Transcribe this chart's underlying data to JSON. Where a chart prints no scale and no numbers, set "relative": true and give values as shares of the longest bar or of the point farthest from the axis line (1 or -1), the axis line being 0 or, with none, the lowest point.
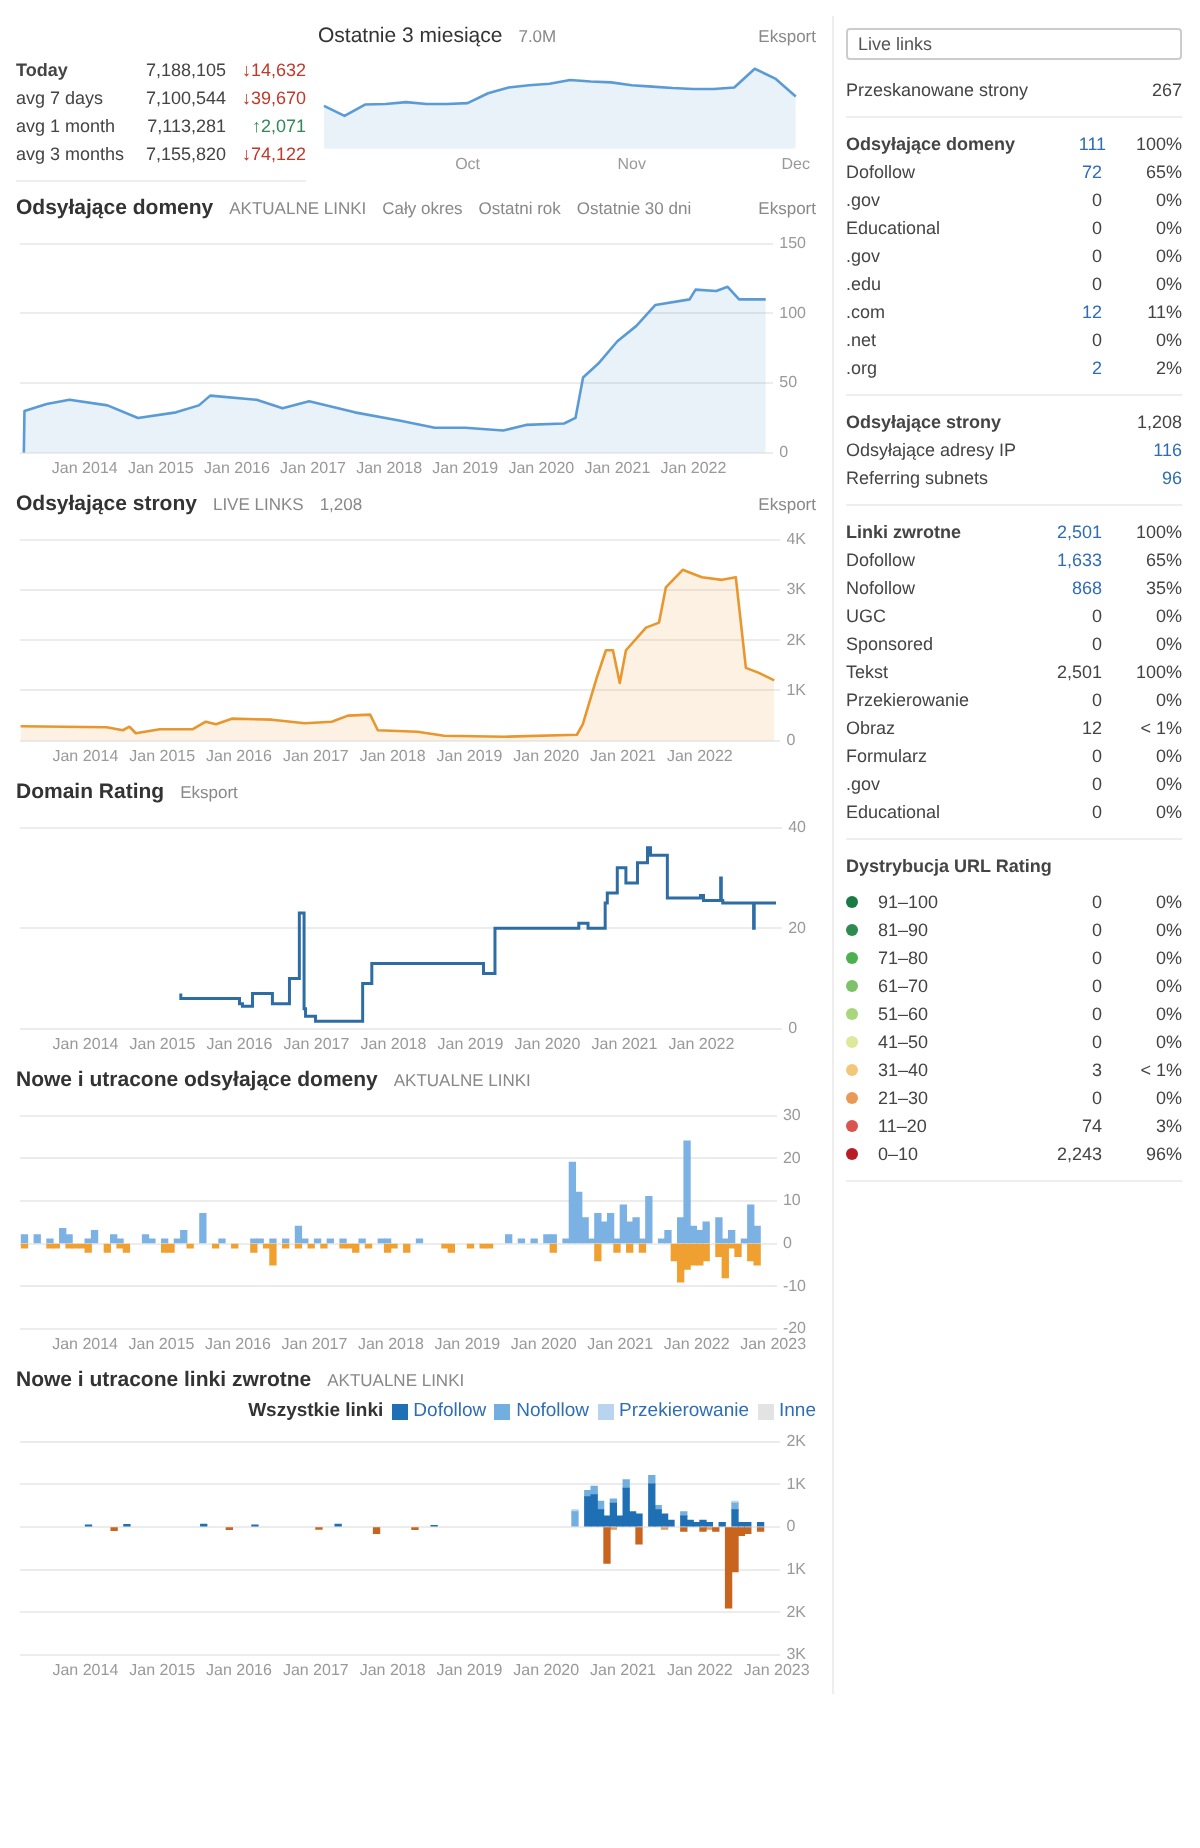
{
  "chart_data": [
    {
      "type": "other",
      "categories": [
        "Today",
        "avg 7 days",
        "avg 1 month",
        "avg 3 months"
      ],
      "series": [
        {
          "color": "#444444",
          "values": [
            7188105,
            7100544,
            7113281,
            7155820
          ],
          "value_labels": [
            "7,188,105",
            "7,100,544",
            "7,113,281",
            "7,155,820"
          ]
        },
        {
          "colors": [
            "#c0392b",
            "#c0392b",
            "#2e8b57",
            "#c0392b"
          ],
          "values": [
            14632,
            39670,
            2071,
            74122
          ],
          "value_labels": [
            "↓14,632",
            "↓39,670",
            "↑2,071",
            "↓74,122"
          ]
        }
      ]
    },
    {
      "type": "area",
      "title": "Ostatnie 3 miesiące",
      "annotations": [
        "7.0M",
        "Eksport"
      ],
      "relative": true,
      "color": "#5b9bd5",
      "categories": [
        null,
        null,
        null,
        null,
        null,
        null,
        null,
        "Oct",
        null,
        null,
        null,
        null,
        null,
        null,
        null,
        "Nov",
        null,
        null,
        null,
        null,
        null,
        null,
        null,
        "Dec"
      ],
      "values": [
        0.21,
        0,
        0.24,
        0.25,
        0.29,
        0.25,
        0.25,
        0.27,
        0.48,
        0.6,
        0.65,
        0.68,
        0.76,
        0.73,
        0.71,
        0.65,
        0.62,
        0.59,
        0.57,
        0.57,
        0.6,
        1,
        0.79,
        0.41
      ]
    },
    {
      "type": "area",
      "title": "Odsyłające domeny",
      "annotations": [
        "AKTUALNE LINKI",
        "Cały okres",
        "Ostatni rok",
        "Ostatnie 30 dni",
        "Eksport"
      ],
      "color": "#5b9bd5",
      "grid": "y",
      "x": [
        "2013-03-13",
        "2013-03-16",
        "2013-07-01",
        "2013-10-19",
        "2014-04-19",
        "2014-09-13",
        "2015-03-13",
        "2015-07-01",
        "2015-08-25",
        "2016-04-04",
        "2016-08-07",
        "2016-12-13",
        "2017-07-19",
        "2018-02-25",
        "2018-08-07",
        "2019-01-01",
        "2019-07-01",
        "2019-10-19",
        "2020-04-19",
        "2020-06-13",
        "2020-07-19",
        "2020-10-01",
        "2021-01-01",
        "2021-04-01",
        "2021-07-01",
        "2021-12-13",
        "2022-01-11",
        "2022-04-19",
        "2022-06-13",
        "2022-08-07",
        "2022-12-13"
      ],
      "values": [
        0,
        30,
        35,
        38,
        34,
        25,
        29,
        34,
        41,
        38,
        32,
        37,
        29,
        23,
        18,
        18,
        16,
        20,
        21,
        25,
        54,
        64,
        80,
        91,
        106,
        110,
        117,
        116,
        119,
        110,
        110
      ],
      "xlim": [
        "2013-02-25",
        "2023-01-19"
      ],
      "xticks": [
        {
          "value": "2014",
          "label": "Jan 2014"
        },
        {
          "value": "2015",
          "label": "Jan 2015"
        },
        {
          "value": "2016",
          "label": "Jan 2016"
        },
        {
          "value": "2017",
          "label": "Jan 2017"
        },
        {
          "value": "2018",
          "label": "Jan 2018"
        },
        {
          "value": "2019",
          "label": "Jan 2019"
        },
        {
          "value": "2020",
          "label": "Jan 2020"
        },
        {
          "value": "2021",
          "label": "Jan 2021"
        },
        {
          "value": "2022",
          "label": "Jan 2022"
        }
      ],
      "ylim": [
        0,
        150
      ],
      "yticks": [
        0,
        50,
        100,
        150
      ]
    },
    {
      "type": "area",
      "title": "Odsyłające strony",
      "annotations": [
        "LIVE LINKS",
        "1,208",
        "Eksport"
      ],
      "color": "#e8962e",
      "grid": "y",
      "x": [
        "2013-02-28",
        "2014-04-11",
        "2014-06-27",
        "2014-07-28",
        "2014-08-28",
        "2014-12-20",
        "2015-05-25",
        "2015-07-26",
        "2015-09-13",
        "2015-11-28",
        "2016-06-05",
        "2016-11-10",
        "2017-03-16",
        "2017-06-02",
        "2017-09-16",
        "2017-10-22",
        "2018-04-28",
        "2018-09-02",
        "2019-06-13",
        "2020-05-25",
        "2020-06-23",
        "2020-08-28",
        "2020-10-11",
        "2020-11-14",
        "2020-12-16",
        "2021-01-15",
        "2021-04-19",
        "2021-06-20",
        "2021-07-22",
        "2021-10-11",
        "2021-11-10",
        "2022-01-11",
        "2022-04-15",
        "2022-06-20",
        "2022-08-07",
        "2022-10-08",
        "2022-12-20"
      ],
      "values": [
        290,
        270,
        210,
        280,
        150,
        230,
        230,
        380,
        330,
        440,
        420,
        350,
        380,
        500,
        520,
        210,
        180,
        100,
        80,
        120,
        330,
        1250,
        1800,
        1800,
        1150,
        1800,
        2250,
        2350,
        3050,
        3400,
        3350,
        3250,
        3200,
        3250,
        1450,
        1350,
        1200
      ],
      "xlim": [
        "2013-02-25",
        "2023-01-19"
      ],
      "xticks": [
        {
          "value": "2014",
          "label": "Jan 2014"
        },
        {
          "value": "2015",
          "label": "Jan 2015"
        },
        {
          "value": "2016",
          "label": "Jan 2016"
        },
        {
          "value": "2017",
          "label": "Jan 2017"
        },
        {
          "value": "2018",
          "label": "Jan 2018"
        },
        {
          "value": "2019",
          "label": "Jan 2019"
        },
        {
          "value": "2020",
          "label": "Jan 2020"
        },
        {
          "value": "2021",
          "label": "Jan 2021"
        },
        {
          "value": "2022",
          "label": "Jan 2022"
        }
      ],
      "ylim": [
        0,
        4000
      ],
      "yticks": [
        0,
        {
          "value": 1000,
          "label": "1K"
        },
        {
          "value": 2000,
          "label": "2K"
        },
        {
          "value": 3000,
          "label": "3K"
        },
        {
          "value": 4000,
          "label": "4K"
        }
      ]
    },
    {
      "type": "step",
      "title": "Domain Rating",
      "annotations": [
        "Eksport"
      ],
      "color": "#2e6da4",
      "grid": "y",
      "x": [
        "2015-03-27",
        "2015-05-07",
        "2016-01-01",
        "2016-01-15",
        "2016-03-02",
        "2016-06-05",
        "2016-08-25",
        "2016-10-11",
        "2016-11-03",
        "2016-11-10",
        "2016-12-27",
        "2017-08-07",
        "2017-09-20",
        "2019-03-02",
        "2019-04-26",
        "2020-05-28",
        "2020-07-11",
        "2020-10-01",
        "2020-10-11",
        "2020-11-28",
        "2021-01-08",
        "2021-03-02",
        "2021-04-19",
        "2021-05-03",
        "2021-07-22",
        "2021-12-27",
        "2022-01-11",
        "2022-04-01",
        "2022-04-04",
        "2022-04-11",
        "2022-07-01",
        "2022-09-05",
        "2022-09-08",
        "2022-09-13",
        "2022-12-20"
      ],
      "values": [
        7,
        6,
        6,
        5,
        4.5,
        7,
        5,
        10,
        23,
        4,
        2.5,
        1.5,
        9,
        13,
        11,
        20,
        21,
        20,
        25,
        27,
        32,
        29,
        33,
        36,
        34.5,
        26,
        26.5,
        25.5,
        30,
        25.5,
        25,
        25,
        20,
        25,
        25
      ],
      "xlim": [
        "2013-02-25",
        "2023-01-19"
      ],
      "xticks": [
        {
          "value": "2014",
          "label": "Jan 2014"
        },
        {
          "value": "2015",
          "label": "Jan 2015"
        },
        {
          "value": "2016",
          "label": "Jan 2016"
        },
        {
          "value": "2017",
          "label": "Jan 2017"
        },
        {
          "value": "2018",
          "label": "Jan 2018"
        },
        {
          "value": "2019",
          "label": "Jan 2019"
        },
        {
          "value": "2020",
          "label": "Jan 2020"
        },
        {
          "value": "2021",
          "label": "Jan 2021"
        },
        {
          "value": "2022",
          "label": "Jan 2022"
        }
      ],
      "ylim": [
        0,
        40
      ],
      "yticks": [
        0,
        20,
        40
      ]
    },
    {
      "type": "bar",
      "title": "Nowe i utracone odsyłające domeny",
      "annotations": [
        "AKTUALNE LINKI"
      ],
      "stacked": true,
      "grid": "y",
      "series": [
        {
          "color": "#7cb1e3",
          "x": [
            "2013-03",
            "2013-05",
            "2013-07",
            "2013-09",
            "2013-10",
            "2014-01",
            "2014-02",
            "2014-05",
            "2014-06",
            "2014-10",
            "2014-11",
            "2015-01",
            "2015-03",
            "2015-04",
            "2015-07",
            "2015-10",
            "2016-03",
            "2016-04",
            "2016-06",
            "2016-08",
            "2016-10",
            "2016-11",
            "2017-01",
            "2017-03",
            "2017-05",
            "2017-08",
            "2017-11",
            "2017-12",
            "2018-05",
            "2019-07",
            "2019-09",
            "2019-11",
            "2020-01",
            "2020-02",
            "2020-04",
            "2020-05",
            "2020-06",
            "2020-07",
            "2020-08",
            "2020-09",
            "2020-10",
            "2020-11",
            "2020-12",
            "2021-01",
            "2021-02",
            "2021-03",
            "2021-04",
            "2021-05",
            "2021-07",
            "2021-08",
            "2021-10",
            "2021-11",
            "2021-12",
            "2022-01",
            "2022-02",
            "2022-04",
            "2022-05",
            "2022-06",
            "2022-08",
            "2022-09",
            "2022-10"
          ],
          "values": [
            2,
            2,
            1,
            3.5,
            2,
            1,
            3,
            2,
            1,
            2,
            1,
            1,
            1,
            3,
            7,
            1,
            1,
            1,
            1,
            1,
            4,
            1,
            1,
            1,
            1,
            1,
            1,
            1,
            1,
            2,
            1,
            1,
            2,
            2,
            1,
            19,
            12,
            6,
            1,
            7,
            5,
            7,
            1,
            9,
            5,
            6,
            1,
            11,
            1,
            3,
            6,
            24,
            4,
            3,
            5,
            6,
            1,
            3,
            1,
            9,
            4
          ]
        },
        {
          "color": "#f0a030",
          "x": [
            "2013-03",
            "2013-07",
            "2013-08",
            "2013-10",
            "2013-11",
            "2013-12",
            "2014-01",
            "2014-04",
            "2014-06",
            "2014-07",
            "2015-01",
            "2015-02",
            "2015-05",
            "2015-09",
            "2015-12",
            "2016-03",
            "2016-05",
            "2016-06",
            "2016-08",
            "2016-10",
            "2016-12",
            "2017-02",
            "2017-05",
            "2017-06",
            "2017-07",
            "2017-09",
            "2017-12",
            "2018-01",
            "2018-03",
            "2018-09",
            "2018-10",
            "2019-01",
            "2019-03",
            "2019-04",
            "2020-02",
            "2020-09",
            "2020-12",
            "2021-02",
            "2021-04",
            "2021-09",
            "2021-10",
            "2021-11",
            "2021-12",
            "2022-01",
            "2022-02",
            "2022-04",
            "2022-05",
            "2022-06",
            "2022-07",
            "2022-09",
            "2022-10"
          ],
          "values": [
            -1,
            -1,
            -1,
            -1,
            -1,
            -1,
            -2,
            -2,
            -1,
            -2,
            -2,
            -2,
            -1,
            -1,
            -1,
            -2,
            -1,
            -5,
            -1,
            -1,
            -1,
            -1,
            -1,
            -1,
            -2,
            -1,
            -2,
            -1,
            -2,
            -1,
            -2,
            -1,
            -1,
            -1,
            -2,
            -4,
            -2,
            -2,
            -2,
            -4,
            -9,
            -6,
            -5,
            -5,
            -4,
            -3,
            -8,
            -1,
            -3,
            -4,
            -5
          ]
        }
      ],
      "xlim": [
        "2013-02-25",
        "2023-01-19"
      ],
      "xticks": [
        {
          "value": "2014",
          "label": "Jan 2014"
        },
        {
          "value": "2015",
          "label": "Jan 2015"
        },
        {
          "value": "2016",
          "label": "Jan 2016"
        },
        {
          "value": "2017",
          "label": "Jan 2017"
        },
        {
          "value": "2018",
          "label": "Jan 2018"
        },
        {
          "value": "2019",
          "label": "Jan 2019"
        },
        {
          "value": "2020",
          "label": "Jan 2020"
        },
        {
          "value": "2021",
          "label": "Jan 2021"
        },
        {
          "value": "2022",
          "label": "Jan 2022"
        },
        {
          "value": "2023",
          "label": "Jan 2023"
        }
      ],
      "ylim": [
        -20,
        30
      ],
      "yticks": [
        -20,
        -10,
        0,
        10,
        20,
        30
      ]
    },
    {
      "type": "bar",
      "title": "Nowe i utracone linki zwrotne",
      "annotations": [
        "AKTUALNE LINKI"
      ],
      "stacked": true,
      "grid": "y",
      "legend": "top right",
      "legend_title": "Wszystkie linki",
      "series": [
        {
          "name": "Dofollow",
          "color": "#1f6fb5",
          "values": [
            40,
            null,
            50,
            60,
            null,
            40,
            null,
            60,
            null,
            null,
            30,
            null,
            700,
            750,
            400,
            250,
            550,
            250,
            900,
            350,
            300,
            1000,
            400,
            300,
            150,
            250,
            150,
            100,
            150,
            100,
            null,
            100,
            null,
            400,
            100,
            100,
            100
          ]
        },
        {
          "name": "Nofollow",
          "color": "#72aee0",
          "values": [
            null,
            null,
            null,
            null,
            null,
            null,
            null,
            null,
            null,
            null,
            null,
            350,
            150,
            200,
            200,
            null,
            100,
            null,
            200,
            null,
            null,
            200,
            100,
            null,
            null,
            100,
            null,
            null,
            null,
            null,
            null,
            null,
            null,
            150,
            null,
            null,
            null
          ]
        },
        {
          "name": "Przekierowanie",
          "color": "#b8d4ee",
          "values": [
            null,
            null,
            null,
            null,
            null,
            null,
            null,
            null,
            null,
            null,
            null,
            50,
            null,
            null,
            null,
            null,
            null,
            null,
            null,
            null,
            null,
            null,
            null,
            null,
            null,
            null,
            null,
            null,
            null,
            null,
            null,
            null,
            null,
            50,
            null,
            null,
            null
          ]
        },
        {
          "name": "Inne",
          "color": "#e3e3e3",
          "values": [
            null,
            null,
            null,
            null,
            null,
            null,
            null,
            null,
            null,
            null,
            null,
            null,
            null,
            null,
            null,
            null,
            null,
            null,
            null,
            null,
            null,
            null,
            null,
            null,
            null,
            null,
            null,
            null,
            null,
            null,
            null,
            null,
            null,
            null,
            null,
            null,
            null
          ]
        },
        {
          "color": "#c8641e",
          "values": [
            null,
            -80,
            null,
            null,
            -60,
            null,
            -50,
            null,
            -150,
            -60,
            null,
            null,
            null,
            null,
            null,
            -850,
            null,
            null,
            null,
            null,
            -400,
            null,
            null,
            null,
            null,
            -100,
            null,
            null,
            -100,
            null,
            -100,
            null,
            -1900,
            -1050,
            -200,
            -150,
            -100
          ]
        },
        {
          "color": "#e89a5a",
          "values": [
            null,
            null,
            null,
            null,
            null,
            null,
            null,
            null,
            null,
            null,
            null,
            null,
            null,
            null,
            null,
            null,
            -50,
            null,
            null,
            null,
            null,
            null,
            null,
            -50,
            null,
            null,
            null,
            null,
            null,
            -50,
            null,
            null,
            null,
            null,
            null,
            null,
            null
          ]
        }
      ],
      "x": [
        "2014-01",
        "2014-05",
        "2014-07",
        "2015-07",
        "2015-11",
        "2016-03",
        "2017-01",
        "2017-04",
        "2017-10",
        "2018-04",
        "2018-07",
        "2020-05",
        "2020-07",
        "2020-08",
        "2020-09",
        "2020-10",
        "2020-11",
        "2020-12",
        "2021-01",
        "2021-02",
        "2021-03",
        "2021-05",
        "2021-06",
        "2021-07",
        "2021-08",
        "2021-10",
        "2021-11",
        "2021-12",
        "2022-01",
        "2022-02",
        "2022-03",
        "2022-04",
        "2022-05",
        "2022-06",
        "2022-07",
        "2022-08",
        "2022-10"
      ],
      "xlim": [
        "2013-02-25",
        "2023-01-19"
      ],
      "xticks": [
        {
          "value": "2014",
          "label": "Jan 2014"
        },
        {
          "value": "2015",
          "label": "Jan 2015"
        },
        {
          "value": "2016",
          "label": "Jan 2016"
        },
        {
          "value": "2017",
          "label": "Jan 2017"
        },
        {
          "value": "2018",
          "label": "Jan 2018"
        },
        {
          "value": "2019",
          "label": "Jan 2019"
        },
        {
          "value": "2020",
          "label": "Jan 2020"
        },
        {
          "value": "2021",
          "label": "Jan 2021"
        },
        {
          "value": "2022",
          "label": "Jan 2022"
        },
        {
          "value": "2023",
          "label": "Jan 2023"
        }
      ],
      "ylim": [
        -3000,
        2000
      ],
      "yticks": [
        {
          "value": -3000,
          "label": "3K"
        },
        {
          "value": -2000,
          "label": "2K"
        },
        {
          "value": -1000,
          "label": "1K"
        },
        0,
        {
          "value": 1000,
          "label": "1K"
        },
        {
          "value": 2000,
          "label": "2K"
        }
      ]
    },
    {
      "type": "other",
      "annotations": [
        "Live links"
      ],
      "data_labels": true,
      "categories": [
        "Przeskanowane strony"
      ],
      "series": [
        {
          "color": "#444444",
          "values": [
            267
          ]
        }
      ]
    },
    {
      "type": "other",
      "data_labels": true,
      "categories": [
        "Odsyłające domeny",
        "Dofollow",
        ".gov",
        "Educational",
        ".gov",
        ".edu",
        ".com",
        ".net",
        ".org"
      ],
      "series": [
        {
          "colors": [
            "#2f6db5",
            "#2f6db5",
            "#444444",
            "#444444",
            "#444444",
            "#444444",
            "#2f6db5",
            "#444444",
            "#2f6db5"
          ],
          "values": [
            111,
            72,
            0,
            0,
            0,
            0,
            12,
            0,
            2
          ]
        },
        {
          "color": "#444444",
          "values": [
            100,
            65,
            0,
            0,
            0,
            0,
            11,
            0,
            2
          ],
          "value_labels": [
            "100%",
            "65%",
            "0%",
            "0%",
            "0%",
            "0%",
            "11%",
            "0%",
            "2%"
          ]
        }
      ]
    },
    {
      "type": "other",
      "categories": [
        "Odsyłające strony",
        "Odsyłające adresy IP",
        "Referring subnets"
      ],
      "series": [
        {
          "colors": [
            "#444444",
            "#2f6db5",
            "#2f6db5"
          ],
          "values": [
            1208,
            116,
            96
          ],
          "value_labels": [
            "1,208",
            "116",
            "96"
          ]
        }
      ]
    },
    {
      "type": "other",
      "categories": [
        "Linki zwrotne",
        "Dofollow",
        "Nofollow",
        "UGC",
        "Sponsored",
        "Tekst",
        "Przekierowanie",
        "Obraz",
        "Formularz",
        ".gov",
        "Educational"
      ],
      "series": [
        {
          "colors": [
            "#2f6db5",
            "#2f6db5",
            "#2f6db5",
            "#444444",
            "#444444",
            "#444444",
            "#444444",
            "#444444",
            "#444444",
            "#444444",
            "#444444"
          ],
          "values": [
            2501,
            1633,
            868,
            0,
            0,
            2501,
            0,
            12,
            0,
            0,
            0
          ],
          "value_labels": [
            "2,501",
            "1,633",
            "868",
            "0",
            "0",
            "2,501",
            "0",
            "12",
            "0",
            "0",
            "0"
          ]
        },
        {
          "color": "#444444",
          "values": [
            100,
            65,
            35,
            0,
            0,
            100,
            0,
            null,
            0,
            0,
            0
          ],
          "value_labels": [
            "100%",
            "65%",
            "35%",
            "0%",
            "0%",
            "100%",
            "0%",
            "< 1%",
            "0%",
            "0%",
            "0%"
          ]
        }
      ]
    },
    {
      "type": "other",
      "title": "Dystrybucja URL Rating",
      "categories": [
        "91–100",
        "81–90",
        "71–80",
        "61–70",
        "51–60",
        "41–50",
        "31–40",
        "21–30",
        "11–20",
        "0–10"
      ],
      "colors": [
        "#1a7a45",
        "#2e8b4e",
        "#4caf50",
        "#7cc26a",
        "#a8d67a",
        "#dde89a",
        "#f3c77a",
        "#eb9a55",
        "#d9534f",
        "#b81d24"
      ],
      "series": [
        {
          "color": "#444444",
          "values": [
            0,
            0,
            0,
            0,
            0,
            0,
            3,
            0,
            74,
            2243
          ],
          "value_labels": [
            "0",
            "0",
            "0",
            "0",
            "0",
            "0",
            "3",
            "0",
            "74",
            "2,243"
          ]
        },
        {
          "color": "#444444",
          "values": [
            0,
            0,
            0,
            0,
            0,
            0,
            null,
            0,
            3,
            96
          ],
          "value_labels": [
            "0%",
            "0%",
            "0%",
            "0%",
            "0%",
            "0%",
            "< 1%",
            "0%",
            "3%",
            "96%"
          ]
        }
      ]
    }
  ]
}
